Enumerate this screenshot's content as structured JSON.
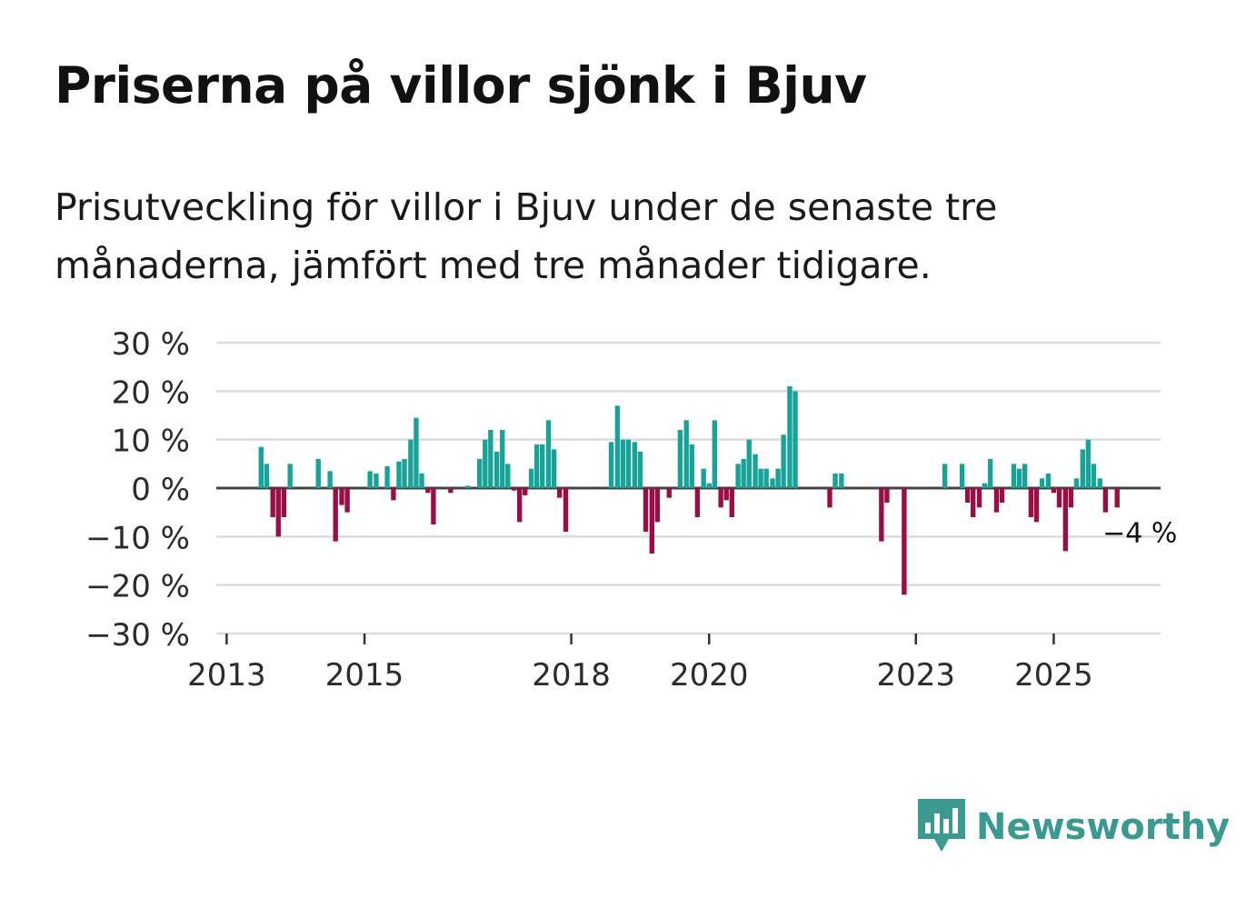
{
  "title": "Priserna på villor sjönk i Bjuv",
  "subtitle": "Prisutveckling för villor i Bjuv under de senaste tre månaderna, jämfört med tre månader tidigare.",
  "brand": {
    "name": "Newsworthy",
    "icon": "bar-chart-speech-bubble-icon"
  },
  "colors": {
    "positive": "#17a398",
    "negative": "#9b0d45",
    "grid": "#dcdcdc",
    "zero": "#444444",
    "text": "#2b2b2b",
    "brand": "#3a9a8f"
  },
  "chart_data": {
    "type": "bar",
    "title": "Priserna på villor sjönk i Bjuv",
    "ylabel": "",
    "xlabel": "",
    "ylim": [
      -30,
      30
    ],
    "yticks": [
      30,
      20,
      10,
      0,
      -10,
      -20,
      -30
    ],
    "ytick_labels": [
      "30 %",
      "20 %",
      "10 %",
      "0 %",
      "−10 %",
      "−20 %",
      "−30 %"
    ],
    "xticks": [
      2013,
      2015,
      2018,
      2020,
      2023,
      2025
    ],
    "xtick_labels": [
      "2013",
      "2015",
      "2018",
      "2020",
      "2023",
      "2025"
    ],
    "xlim": [
      2012.85,
      2026.55
    ],
    "annotation": {
      "text": "−4 %",
      "x": 2026.25,
      "y": -4
    },
    "points": [
      {
        "x": 2013.5,
        "y": 8.5
      },
      {
        "x": 2013.58,
        "y": 5
      },
      {
        "x": 2013.67,
        "y": -6
      },
      {
        "x": 2013.75,
        "y": -10
      },
      {
        "x": 2013.83,
        "y": -6
      },
      {
        "x": 2013.92,
        "y": 5
      },
      {
        "x": 2014.33,
        "y": 6
      },
      {
        "x": 2014.5,
        "y": 3.5
      },
      {
        "x": 2014.58,
        "y": -11
      },
      {
        "x": 2014.67,
        "y": -3.5
      },
      {
        "x": 2014.75,
        "y": -5
      },
      {
        "x": 2015.08,
        "y": 3.5
      },
      {
        "x": 2015.17,
        "y": 3
      },
      {
        "x": 2015.33,
        "y": 4.5
      },
      {
        "x": 2015.42,
        "y": -2.5
      },
      {
        "x": 2015.5,
        "y": 5.5
      },
      {
        "x": 2015.58,
        "y": 6
      },
      {
        "x": 2015.67,
        "y": 10
      },
      {
        "x": 2015.75,
        "y": 14.5
      },
      {
        "x": 2015.83,
        "y": 3
      },
      {
        "x": 2015.92,
        "y": -1
      },
      {
        "x": 2016.0,
        "y": -7.5
      },
      {
        "x": 2016.25,
        "y": -1
      },
      {
        "x": 2016.5,
        "y": 0.5
      },
      {
        "x": 2016.67,
        "y": 6
      },
      {
        "x": 2016.75,
        "y": 10
      },
      {
        "x": 2016.83,
        "y": 12
      },
      {
        "x": 2016.92,
        "y": 7.5
      },
      {
        "x": 2017.0,
        "y": 12
      },
      {
        "x": 2017.08,
        "y": 5
      },
      {
        "x": 2017.17,
        "y": -0.5
      },
      {
        "x": 2017.25,
        "y": -7
      },
      {
        "x": 2017.33,
        "y": -1.5
      },
      {
        "x": 2017.42,
        "y": 4
      },
      {
        "x": 2017.5,
        "y": 9
      },
      {
        "x": 2017.58,
        "y": 9
      },
      {
        "x": 2017.67,
        "y": 14
      },
      {
        "x": 2017.75,
        "y": 8
      },
      {
        "x": 2017.83,
        "y": -2
      },
      {
        "x": 2017.92,
        "y": -9
      },
      {
        "x": 2018.58,
        "y": 9.5
      },
      {
        "x": 2018.67,
        "y": 17
      },
      {
        "x": 2018.75,
        "y": 10
      },
      {
        "x": 2018.83,
        "y": 10
      },
      {
        "x": 2018.92,
        "y": 9.5
      },
      {
        "x": 2019.0,
        "y": 7.5
      },
      {
        "x": 2019.08,
        "y": -9
      },
      {
        "x": 2019.17,
        "y": -13.5
      },
      {
        "x": 2019.25,
        "y": -7
      },
      {
        "x": 2019.42,
        "y": -2
      },
      {
        "x": 2019.58,
        "y": 12
      },
      {
        "x": 2019.67,
        "y": 14
      },
      {
        "x": 2019.75,
        "y": 9
      },
      {
        "x": 2019.83,
        "y": -6
      },
      {
        "x": 2019.92,
        "y": 4
      },
      {
        "x": 2020.0,
        "y": 1
      },
      {
        "x": 2020.08,
        "y": 14
      },
      {
        "x": 2020.17,
        "y": -4
      },
      {
        "x": 2020.25,
        "y": -2.5
      },
      {
        "x": 2020.33,
        "y": -6
      },
      {
        "x": 2020.42,
        "y": 5
      },
      {
        "x": 2020.5,
        "y": 6
      },
      {
        "x": 2020.58,
        "y": 10
      },
      {
        "x": 2020.67,
        "y": 7
      },
      {
        "x": 2020.75,
        "y": 4
      },
      {
        "x": 2020.83,
        "y": 4
      },
      {
        "x": 2020.92,
        "y": 2
      },
      {
        "x": 2021.0,
        "y": 4
      },
      {
        "x": 2021.08,
        "y": 11
      },
      {
        "x": 2021.17,
        "y": 21
      },
      {
        "x": 2021.25,
        "y": 20
      },
      {
        "x": 2021.75,
        "y": -4
      },
      {
        "x": 2021.83,
        "y": 3
      },
      {
        "x": 2021.92,
        "y": 3
      },
      {
        "x": 2022.5,
        "y": -11
      },
      {
        "x": 2022.58,
        "y": -3
      },
      {
        "x": 2022.83,
        "y": -22
      },
      {
        "x": 2023.42,
        "y": 5
      },
      {
        "x": 2023.67,
        "y": 5
      },
      {
        "x": 2023.75,
        "y": -3
      },
      {
        "x": 2023.83,
        "y": -6
      },
      {
        "x": 2023.92,
        "y": -4
      },
      {
        "x": 2024.0,
        "y": 1
      },
      {
        "x": 2024.08,
        "y": 6
      },
      {
        "x": 2024.17,
        "y": -5
      },
      {
        "x": 2024.25,
        "y": -3
      },
      {
        "x": 2024.42,
        "y": 5
      },
      {
        "x": 2024.5,
        "y": 4
      },
      {
        "x": 2024.58,
        "y": 5
      },
      {
        "x": 2024.67,
        "y": -6
      },
      {
        "x": 2024.75,
        "y": -7
      },
      {
        "x": 2024.83,
        "y": 2
      },
      {
        "x": 2024.92,
        "y": 3
      },
      {
        "x": 2025.0,
        "y": -1
      },
      {
        "x": 2025.08,
        "y": -4
      },
      {
        "x": 2025.17,
        "y": -13
      },
      {
        "x": 2025.25,
        "y": -4
      },
      {
        "x": 2025.33,
        "y": 2
      },
      {
        "x": 2025.42,
        "y": 8
      },
      {
        "x": 2025.5,
        "y": 10
      },
      {
        "x": 2025.58,
        "y": 5
      },
      {
        "x": 2025.67,
        "y": 2
      },
      {
        "x": 2025.75,
        "y": -5
      },
      {
        "x": 2025.92,
        "y": -4
      }
    ]
  }
}
